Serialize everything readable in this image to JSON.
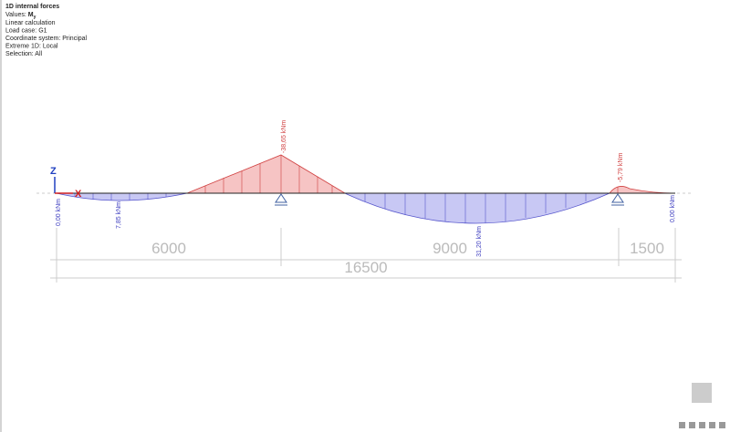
{
  "header": {
    "title": "1D internal forces",
    "values_label": "Values:",
    "quantity": "M",
    "quantity_sub": "y",
    "lines": [
      "Linear calculation",
      "Load case: G1",
      "Coordinate system: Principal",
      "Extreme 1D: Local",
      "Selection: All"
    ]
  },
  "axes": {
    "z": "Z",
    "x": "X"
  },
  "moment_labels": [
    "0,00 kNm",
    "7,85 kNm",
    "-38,65 kNm",
    "31,20 kNm",
    "-5,79 kNm",
    "0,00 kNm"
  ],
  "dimensions": {
    "spans": [
      "6000",
      "9000",
      "1500"
    ],
    "total": "16500"
  }
}
